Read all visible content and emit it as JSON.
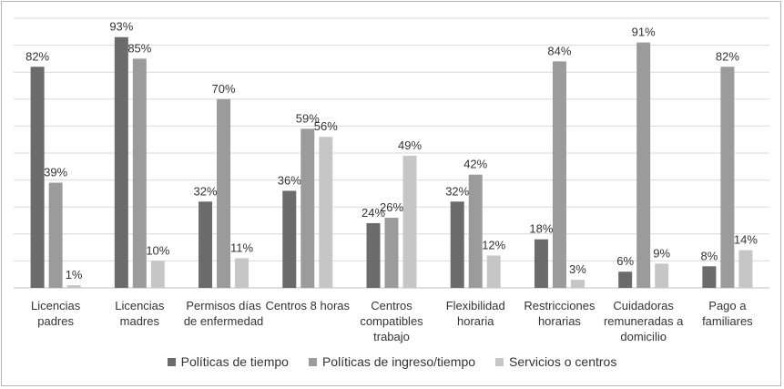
{
  "chart_data": {
    "type": "bar",
    "title": "",
    "xlabel": "",
    "ylabel": "",
    "ylim": [
      0,
      100
    ],
    "grid": true,
    "legend_position": "bottom",
    "categories": [
      [
        "Licencias",
        "padres"
      ],
      [
        "Licencias",
        "madres"
      ],
      [
        "Permisos días",
        "de enfermedad"
      ],
      [
        "Centros 8 horas"
      ],
      [
        "Centros",
        "compatibles",
        "trabajo"
      ],
      [
        "Flexibilidad",
        "horaria"
      ],
      [
        "Restricciones",
        "horarias"
      ],
      [
        "Cuidadoras",
        "remuneradas a",
        "domicilio"
      ],
      [
        "Pago a",
        "familiares"
      ]
    ],
    "series": [
      {
        "name": "Políticas de tiempo",
        "color": "#6b6b6b",
        "values": [
          82,
          93,
          32,
          36,
          24,
          32,
          18,
          6,
          8
        ]
      },
      {
        "name": "Políticas de ingreso/tiempo",
        "color": "#9b9b9b",
        "values": [
          39,
          85,
          70,
          59,
          26,
          42,
          84,
          91,
          82
        ]
      },
      {
        "name": "Servicios o centros",
        "color": "#c6c6c6",
        "values": [
          1,
          10,
          11,
          56,
          49,
          12,
          3,
          9,
          14
        ]
      }
    ],
    "value_suffix": "%"
  }
}
